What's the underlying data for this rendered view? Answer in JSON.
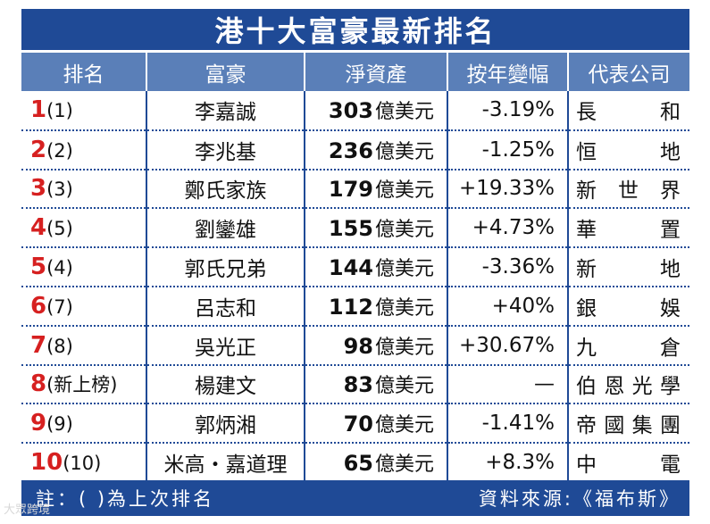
{
  "title": "港十大富豪最新排名",
  "headers": [
    "排名",
    "富豪",
    "淨資產",
    "按年變幅",
    "代表公司"
  ],
  "rows": [
    {
      "rank": "1",
      "prev": "(1)",
      "name": "李嘉誠",
      "worth": "303",
      "unit": "億美元",
      "change": "-3.19%",
      "company": "長和"
    },
    {
      "rank": "2",
      "prev": "(2)",
      "name": "李兆基",
      "worth": "236",
      "unit": "億美元",
      "change": "-1.25%",
      "company": "恒地"
    },
    {
      "rank": "3",
      "prev": "(3)",
      "name": "鄭氏家族",
      "worth": "179",
      "unit": "億美元",
      "change": "+19.33%",
      "company": "新世界"
    },
    {
      "rank": "4",
      "prev": "(5)",
      "name": "劉鑾雄",
      "worth": "155",
      "unit": "億美元",
      "change": "+4.73%",
      "company": "華置"
    },
    {
      "rank": "5",
      "prev": "(4)",
      "name": "郭氏兄弟",
      "worth": "144",
      "unit": "億美元",
      "change": "-3.36%",
      "company": "新地"
    },
    {
      "rank": "6",
      "prev": "(7)",
      "name": "呂志和",
      "worth": "112",
      "unit": "億美元",
      "change": "+40%",
      "company": "銀娛"
    },
    {
      "rank": "7",
      "prev": "(8)",
      "name": "吳光正",
      "worth": "98",
      "unit": "億美元",
      "change": "+30.67%",
      "company": "九倉"
    },
    {
      "rank": "8",
      "prev": "(新上榜)",
      "name": "楊建文",
      "worth": "83",
      "unit": "億美元",
      "change": "—",
      "company": "伯恩光學"
    },
    {
      "rank": "9",
      "prev": "(9)",
      "name": "郭炳湘",
      "worth": "70",
      "unit": "億美元",
      "change": "-1.41%",
      "company": "帝國集團"
    },
    {
      "rank": "10",
      "prev": "(10)",
      "name": "米高・嘉道理",
      "worth": "65",
      "unit": "億美元",
      "change": "+8.3%",
      "company": "中電"
    }
  ],
  "footer": {
    "note": "註：( )為上次排名",
    "source": "資料來源:《福布斯》"
  },
  "watermark": "大眾跨境",
  "colors": {
    "title_bg": "#1f4a96",
    "header_bg": "#5a7fb8",
    "rank_red": "#d62020"
  }
}
